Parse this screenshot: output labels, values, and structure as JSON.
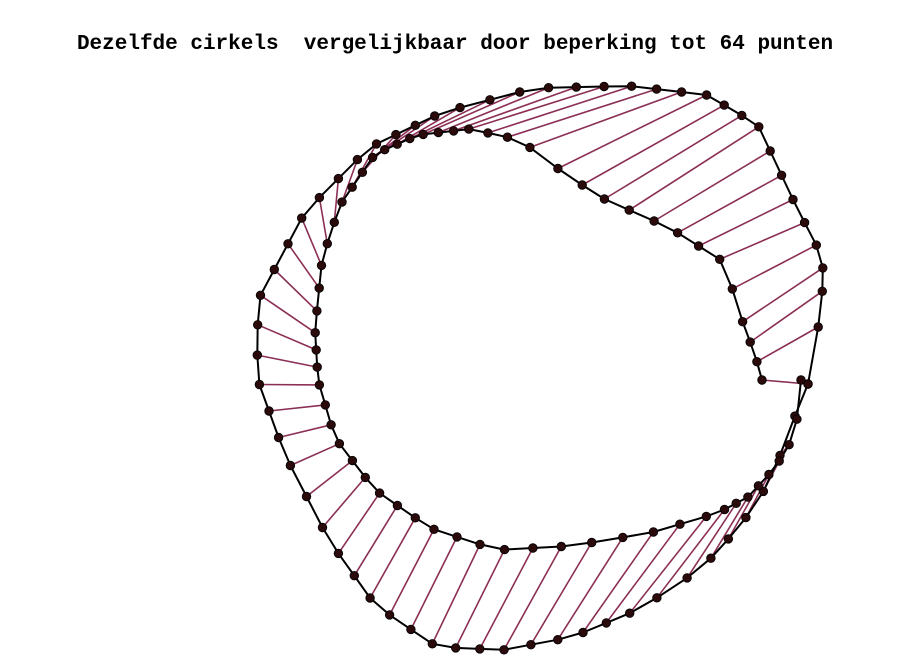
{
  "title": "Dezelfde cirkels  vergelijkbaar door beperking tot 64 punten",
  "colors": {
    "outline": "#000000",
    "connector": "#8b2f55",
    "point": "#2a0a0a"
  },
  "point_count": 64,
  "diagram": {
    "outer_contour": "black polyline through 64 points",
    "inner_contour": "black polyline through 64 points",
    "connectors": "each outer point joined to the matching inner point"
  }
}
